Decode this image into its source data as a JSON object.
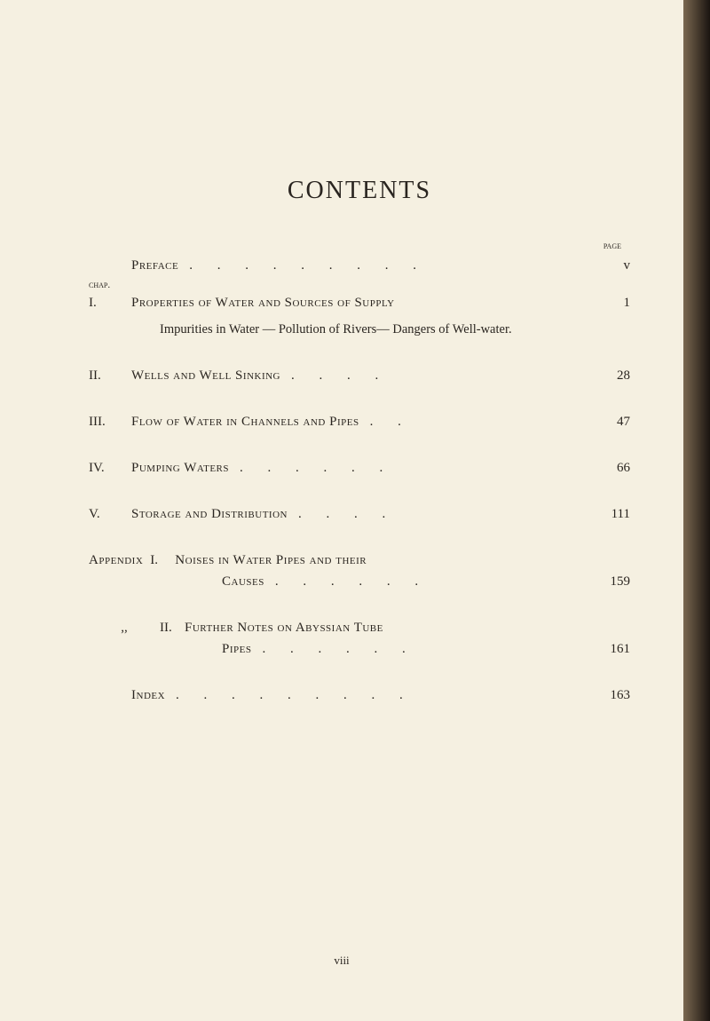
{
  "title": "CONTENTS",
  "page_header": "page",
  "chap_header": "chap.",
  "preface": {
    "label": "Preface",
    "page": "v"
  },
  "chapters": [
    {
      "num": "I.",
      "label": "Properties of Water and Sources of Supply",
      "page": "1",
      "subtext": "Impurities in Water — Pollution of Rivers— Dangers of Well-water."
    },
    {
      "num": "II.",
      "label": "Wells and Well Sinking",
      "page": "28"
    },
    {
      "num": "III.",
      "label": "Flow of Water in Channels and Pipes",
      "page": "47"
    },
    {
      "num": "IV.",
      "label": "Pumping Waters",
      "page": "66"
    },
    {
      "num": "V.",
      "label": "Storage and Distribution",
      "page": "111"
    }
  ],
  "appendix": [
    {
      "prefix": "Appendix",
      "num": "I.",
      "label_line1": "Noises in Water Pipes and their",
      "label_line2": "Causes",
      "page": "159"
    },
    {
      "ditto": ",,",
      "num": "II.",
      "label_line1": "Further Notes on Abyssian Tube",
      "label_line2": "Pipes",
      "page": "161"
    }
  ],
  "index": {
    "label": "Index",
    "page": "163"
  },
  "folio": "viii",
  "colors": {
    "background": "#f5f0e1",
    "text": "#2a2520",
    "edge_light": "#7a6850",
    "edge_dark": "#1a1410"
  },
  "typography": {
    "title_fontsize": 28,
    "body_fontsize": 15,
    "small_fontsize": 11,
    "font_family": "Georgia, Times New Roman, serif"
  }
}
